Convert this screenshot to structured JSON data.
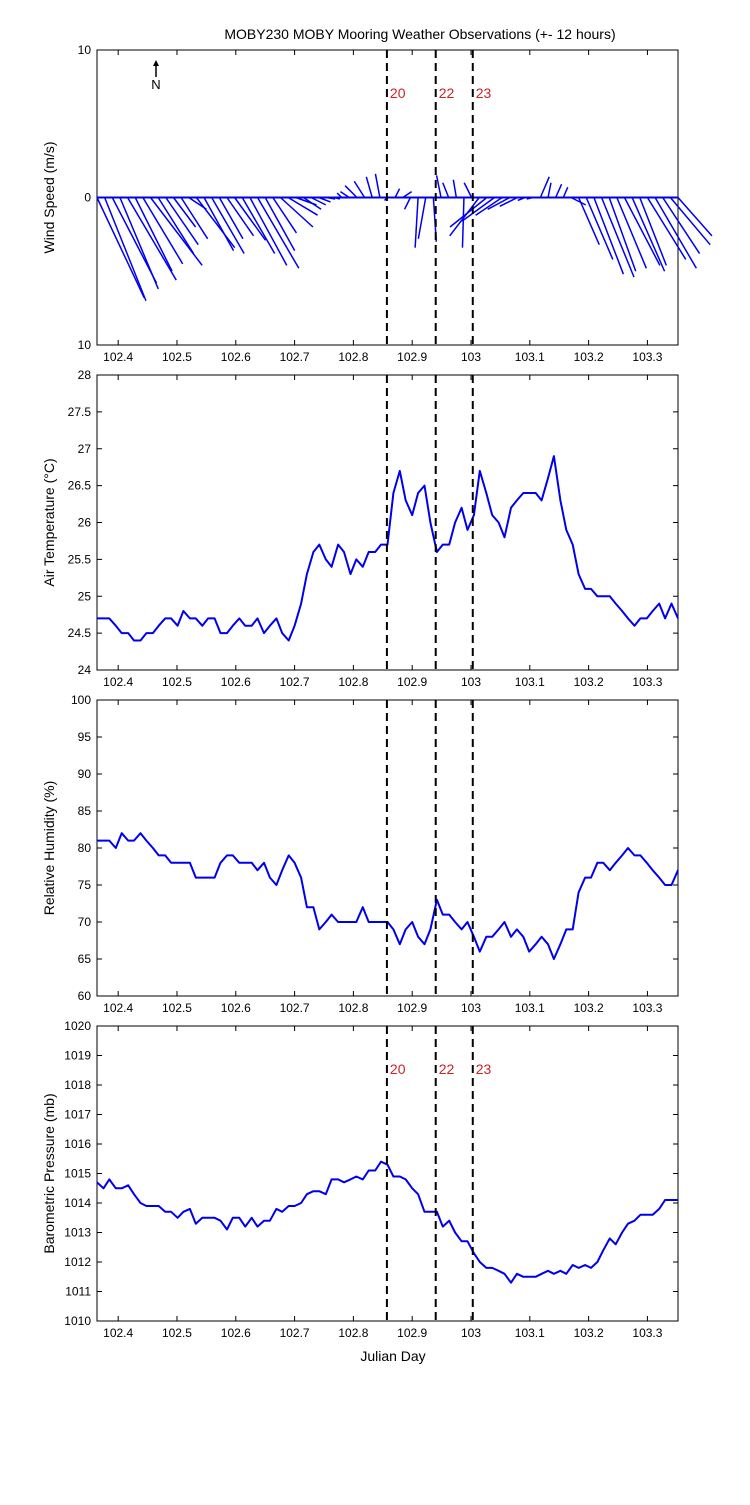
{
  "title": "MOBY230 MOBY Mooring Weather Observations (+- 12 hours)",
  "xlabel": "Julian Day",
  "xticks": [
    102.4,
    102.5,
    102.6,
    102.7,
    102.8,
    102.9,
    103,
    103.1,
    103.2,
    103.3
  ],
  "xticklabels": [
    "102.4",
    "102.5",
    "102.6",
    "102.7",
    "102.8",
    "102.9",
    "103",
    "103.1",
    "103.2",
    "103.3"
  ],
  "xlim": [
    102.364,
    103.352
  ],
  "marker_lines": [
    {
      "x": 102.857,
      "label": "20"
    },
    {
      "x": 102.94,
      "label": "22"
    },
    {
      "x": 103.003,
      "label": "23"
    }
  ],
  "north_label": "N",
  "colors": {
    "series": "#0000ee",
    "marker_label": "#cc2222",
    "axes": "#000000"
  },
  "chart_data": [
    {
      "type": "line",
      "ylabel": "Wind Speed (m/s)",
      "ylim": [
        -10,
        10
      ],
      "yticklabels": [
        "10",
        "0",
        "10"
      ],
      "yticks": [
        -10,
        0,
        10
      ],
      "marker_labels_shown": true,
      "north_arrow": true,
      "series": [
        {
          "x": [
            102.364,
            102.377,
            102.39,
            102.403,
            102.416,
            102.429,
            102.442,
            102.455,
            102.468,
            102.481,
            102.494,
            102.507,
            102.52,
            102.533,
            102.546,
            102.559,
            102.572,
            102.585,
            102.598,
            102.611,
            102.624,
            102.637,
            102.65,
            102.663,
            102.676,
            102.689,
            102.702,
            102.715,
            102.728,
            102.741,
            102.754,
            102.767,
            102.78,
            102.793,
            102.806,
            102.819,
            102.832,
            102.845,
            102.858,
            102.871,
            102.884,
            102.897,
            102.91,
            102.923,
            102.936,
            102.949,
            102.962,
            102.975,
            102.988,
            103.001,
            103.014,
            103.027,
            103.04,
            103.053,
            103.066,
            103.079,
            103.092,
            103.105,
            103.118,
            103.131,
            103.144,
            103.157,
            103.17,
            103.183,
            103.196,
            103.209,
            103.222,
            103.235,
            103.248,
            103.261,
            103.274,
            103.287,
            103.3,
            103.313,
            103.326,
            103.339,
            103.352
          ],
          "u": [
            3.2,
            2.8,
            3.0,
            2.6,
            3.3,
            2.5,
            2.7,
            3.5,
            2.4,
            2.2,
            1.5,
            1.8,
            1.2,
            2.6,
            2.0,
            2.2,
            1.6,
            1.8,
            2.1,
            2.2,
            2.5,
            2.8,
            2.0,
            1.6,
            2.2,
            2.0,
            1.4,
            1.2,
            1.0,
            0.8,
            0.6,
            0.4,
            -0.3,
            -0.6,
            -0.8,
            -0.7,
            -0.4,
            -0.3,
            -0.2,
            0.3,
            0.6,
            -0.4,
            -0.2,
            -0.5,
            0.2,
            -0.3,
            -0.4,
            -0.2,
            -0.1,
            -0.5,
            -2.0,
            -2.5,
            -2.2,
            -1.8,
            -1.5,
            -1.2,
            -0.5,
            -0.4,
            0.6,
            0.2,
            0.4,
            0.3,
            1.0,
            1.4,
            1.8,
            2.0,
            2.2,
            1.8,
            2.0,
            2.4,
            2.2,
            1.8,
            2.6,
            2.8,
            2.5,
            2.7,
            2.3
          ],
          "v": [
            -6.8,
            -7.0,
            -5.8,
            -6.2,
            -5.6,
            -5.0,
            -4.5,
            -4.6,
            -3.8,
            -3.2,
            -2.0,
            -2.8,
            -0.8,
            -3.4,
            -3.6,
            -3.8,
            -2.8,
            -2.6,
            -2.9,
            -3.8,
            -4.6,
            -4.8,
            -3.6,
            -2.4,
            -2.0,
            -1.2,
            -0.5,
            -0.8,
            -0.5,
            -0.3,
            -0.1,
            -0.1,
            0.3,
            0.4,
            0.8,
            1.1,
            1.4,
            1.6,
            -0.2,
            0.6,
            0.4,
            -0.8,
            -3.4,
            -2.8,
            -3.0,
            1.5,
            1.0,
            1.2,
            -3.4,
            1.0,
            -2.6,
            -2.0,
            -1.6,
            -1.2,
            -0.8,
            -0.6,
            -0.2,
            -0.1,
            1.4,
            1.0,
            0.9,
            0.7,
            -0.5,
            -3.2,
            -4.2,
            -5.2,
            -5.4,
            -5.0,
            -4.8,
            -4.6,
            -5.0,
            -4.6,
            -4.2,
            -4.8,
            -3.8,
            -3.2,
            -2.6
          ]
        }
      ]
    },
    {
      "type": "line",
      "ylabel": "Air Temperature (°C)",
      "ylim": [
        24,
        28
      ],
      "yticks": [
        24,
        24.5,
        25,
        25.5,
        26,
        26.5,
        27,
        27.5,
        28
      ],
      "yticklabels": [
        "24",
        "24.5",
        "25",
        "25.5",
        "26",
        "26.5",
        "27",
        "27.5",
        "28"
      ],
      "series": [
        {
          "x": [
            102.364,
            102.375,
            102.385,
            102.396,
            102.406,
            102.417,
            102.427,
            102.438,
            102.448,
            102.459,
            102.469,
            102.48,
            102.49,
            102.501,
            102.511,
            102.522,
            102.532,
            102.543,
            102.553,
            102.564,
            102.574,
            102.585,
            102.595,
            102.606,
            102.616,
            102.627,
            102.637,
            102.648,
            102.658,
            102.669,
            102.679,
            102.69,
            102.7,
            102.711,
            102.721,
            102.732,
            102.742,
            102.753,
            102.763,
            102.774,
            102.784,
            102.795,
            102.805,
            102.816,
            102.826,
            102.837,
            102.847,
            102.858,
            102.868,
            102.879,
            102.889,
            102.9,
            102.91,
            102.921,
            102.931,
            102.942,
            102.952,
            102.963,
            102.973,
            102.984,
            102.994,
            103.005,
            103.015,
            103.026,
            103.036,
            103.047,
            103.057,
            103.068,
            103.078,
            103.089,
            103.099,
            103.11,
            103.12,
            103.131,
            103.141,
            103.152,
            103.162,
            103.173,
            103.183,
            103.194,
            103.204,
            103.215,
            103.225,
            103.236,
            103.246,
            103.257,
            103.267,
            103.278,
            103.288,
            103.299,
            103.309,
            103.32,
            103.33,
            103.341,
            103.352
          ],
          "values": [
            24.7,
            24.7,
            24.7,
            24.6,
            24.5,
            24.5,
            24.4,
            24.4,
            24.5,
            24.5,
            24.6,
            24.7,
            24.7,
            24.6,
            24.8,
            24.7,
            24.7,
            24.6,
            24.7,
            24.7,
            24.5,
            24.5,
            24.6,
            24.7,
            24.6,
            24.6,
            24.7,
            24.5,
            24.6,
            24.7,
            24.5,
            24.4,
            24.6,
            24.9,
            25.3,
            25.6,
            25.7,
            25.5,
            25.4,
            25.7,
            25.6,
            25.3,
            25.5,
            25.4,
            25.6,
            25.6,
            25.7,
            25.7,
            26.4,
            26.7,
            26.3,
            26.1,
            26.4,
            26.5,
            26.0,
            25.6,
            25.7,
            25.7,
            26.0,
            26.2,
            25.9,
            26.1,
            26.7,
            26.4,
            26.1,
            26.0,
            25.8,
            26.2,
            26.3,
            26.4,
            26.4,
            26.4,
            26.3,
            26.6,
            26.9,
            26.3,
            25.9,
            25.7,
            25.3,
            25.1,
            25.1,
            25.0,
            25.0,
            25.0,
            24.9,
            24.8,
            24.7,
            24.6,
            24.7,
            24.7,
            24.8,
            24.9,
            24.7,
            24.9,
            24.7
          ]
        }
      ]
    },
    {
      "type": "line",
      "ylabel": "Relative Humidity (%)",
      "ylim": [
        60,
        100
      ],
      "yticks": [
        60,
        65,
        70,
        75,
        80,
        85,
        90,
        95,
        100
      ],
      "yticklabels": [
        "60",
        "65",
        "70",
        "75",
        "80",
        "85",
        "90",
        "95",
        "100"
      ],
      "series": [
        {
          "x": [
            102.364,
            102.375,
            102.385,
            102.396,
            102.406,
            102.417,
            102.427,
            102.438,
            102.448,
            102.459,
            102.469,
            102.48,
            102.49,
            102.501,
            102.511,
            102.522,
            102.532,
            102.543,
            102.553,
            102.564,
            102.574,
            102.585,
            102.595,
            102.606,
            102.616,
            102.627,
            102.637,
            102.648,
            102.658,
            102.669,
            102.679,
            102.69,
            102.7,
            102.711,
            102.721,
            102.732,
            102.742,
            102.753,
            102.763,
            102.774,
            102.784,
            102.795,
            102.805,
            102.816,
            102.826,
            102.837,
            102.847,
            102.858,
            102.868,
            102.879,
            102.889,
            102.9,
            102.91,
            102.921,
            102.931,
            102.942,
            102.952,
            102.963,
            102.973,
            102.984,
            102.994,
            103.005,
            103.015,
            103.026,
            103.036,
            103.047,
            103.057,
            103.068,
            103.078,
            103.089,
            103.099,
            103.11,
            103.12,
            103.131,
            103.141,
            103.152,
            103.162,
            103.173,
            103.183,
            103.194,
            103.204,
            103.215,
            103.225,
            103.236,
            103.246,
            103.257,
            103.267,
            103.278,
            103.288,
            103.299,
            103.309,
            103.32,
            103.33,
            103.341,
            103.352
          ],
          "values": [
            81,
            81,
            81,
            80,
            82,
            81,
            81,
            82,
            81,
            80,
            79,
            79,
            78,
            78,
            78,
            78,
            76,
            76,
            76,
            76,
            78,
            79,
            79,
            78,
            78,
            78,
            77,
            78,
            76,
            75,
            77,
            79,
            78,
            76,
            72,
            72,
            69,
            70,
            71,
            70,
            70,
            70,
            70,
            72,
            70,
            70,
            70,
            70,
            69,
            67,
            69,
            70,
            68,
            67,
            69,
            73,
            71,
            71,
            70,
            69,
            70,
            68,
            66,
            68,
            68,
            69,
            70,
            68,
            69,
            68,
            66,
            67,
            68,
            67,
            65,
            67,
            69,
            69,
            74,
            76,
            76,
            78,
            78,
            77,
            78,
            79,
            80,
            79,
            79,
            78,
            77,
            76,
            75,
            75,
            77
          ]
        }
      ]
    },
    {
      "type": "line",
      "ylabel": "Barometric Pressure (mb)",
      "ylim": [
        1010,
        1020
      ],
      "yticks": [
        1010,
        1011,
        1012,
        1013,
        1014,
        1015,
        1016,
        1017,
        1018,
        1019,
        1020
      ],
      "yticklabels": [
        "1010",
        "1011",
        "1012",
        "1013",
        "1014",
        "1015",
        "1016",
        "1017",
        "1018",
        "1019",
        "1020"
      ],
      "marker_labels_shown": true,
      "series": [
        {
          "x": [
            102.364,
            102.375,
            102.385,
            102.396,
            102.406,
            102.417,
            102.427,
            102.438,
            102.448,
            102.459,
            102.469,
            102.48,
            102.49,
            102.501,
            102.511,
            102.522,
            102.532,
            102.543,
            102.553,
            102.564,
            102.574,
            102.585,
            102.595,
            102.606,
            102.616,
            102.627,
            102.637,
            102.648,
            102.658,
            102.669,
            102.679,
            102.69,
            102.7,
            102.711,
            102.721,
            102.732,
            102.742,
            102.753,
            102.763,
            102.774,
            102.784,
            102.795,
            102.805,
            102.816,
            102.826,
            102.837,
            102.847,
            102.858,
            102.868,
            102.879,
            102.889,
            102.9,
            102.91,
            102.921,
            102.931,
            102.942,
            102.952,
            102.963,
            102.973,
            102.984,
            102.994,
            103.005,
            103.015,
            103.026,
            103.036,
            103.047,
            103.057,
            103.068,
            103.078,
            103.089,
            103.099,
            103.11,
            103.12,
            103.131,
            103.141,
            103.152,
            103.162,
            103.173,
            103.183,
            103.194,
            103.204,
            103.215,
            103.225,
            103.236,
            103.246,
            103.257,
            103.267,
            103.278,
            103.288,
            103.299,
            103.309,
            103.32,
            103.33,
            103.341,
            103.352
          ],
          "values": [
            1014.7,
            1014.5,
            1014.8,
            1014.5,
            1014.5,
            1014.6,
            1014.3,
            1014.0,
            1013.9,
            1013.9,
            1013.9,
            1013.7,
            1013.7,
            1013.5,
            1013.7,
            1013.8,
            1013.3,
            1013.5,
            1013.5,
            1013.5,
            1013.4,
            1013.1,
            1013.5,
            1013.5,
            1013.2,
            1013.5,
            1013.2,
            1013.4,
            1013.4,
            1013.8,
            1013.7,
            1013.9,
            1013.9,
            1014.0,
            1014.3,
            1014.4,
            1014.4,
            1014.3,
            1014.8,
            1014.8,
            1014.7,
            1014.8,
            1014.9,
            1014.8,
            1015.1,
            1015.1,
            1015.4,
            1015.3,
            1014.9,
            1014.9,
            1014.8,
            1014.5,
            1014.3,
            1013.7,
            1013.7,
            1013.7,
            1013.2,
            1013.4,
            1013.0,
            1012.7,
            1012.7,
            1012.3,
            1012.0,
            1011.8,
            1011.8,
            1011.7,
            1011.6,
            1011.3,
            1011.6,
            1011.5,
            1011.5,
            1011.5,
            1011.6,
            1011.7,
            1011.6,
            1011.7,
            1011.6,
            1011.9,
            1011.8,
            1011.9,
            1011.8,
            1012.0,
            1012.4,
            1012.8,
            1012.6,
            1013.0,
            1013.3,
            1013.4,
            1013.6,
            1013.6,
            1013.6,
            1013.8,
            1014.1,
            1014.1,
            1014.1
          ]
        }
      ]
    }
  ]
}
